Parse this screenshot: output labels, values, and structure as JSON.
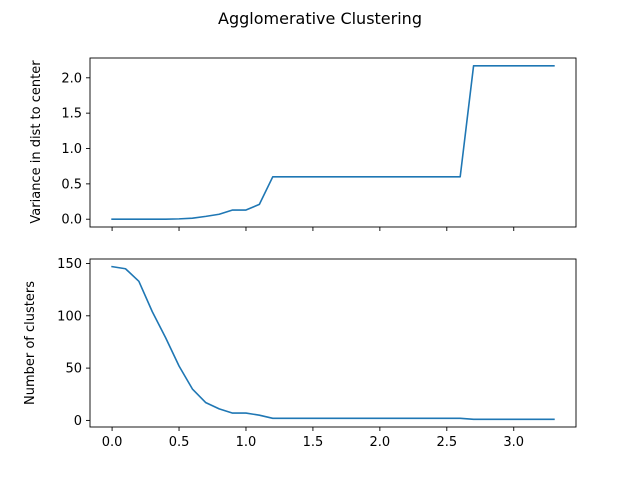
{
  "figure": {
    "title": "Agglomerative Clustering"
  },
  "chart_data": [
    {
      "type": "line",
      "ylabel": "Variance in dist to center",
      "xlabel": "",
      "xlim": [
        -0.165,
        3.465
      ],
      "ylim": [
        -0.11,
        2.28
      ],
      "x_ticks": [
        0.0,
        0.5,
        1.0,
        1.5,
        2.0,
        2.5,
        3.0
      ],
      "x_tick_labels_visible": false,
      "y_ticks": [
        0.0,
        0.5,
        1.0,
        1.5,
        2.0
      ],
      "y_tick_labels": [
        "0.0",
        "0.5",
        "1.0",
        "1.5",
        "2.0"
      ],
      "grid": false,
      "color": "#1f77b4",
      "series": [
        {
          "x": [
            0.0,
            0.1,
            0.2,
            0.3,
            0.4,
            0.5,
            0.6,
            0.7,
            0.8,
            0.9,
            1.0,
            1.1,
            1.2,
            1.3,
            1.4,
            1.5,
            1.6,
            1.7,
            1.8,
            1.9,
            2.0,
            2.1,
            2.2,
            2.3,
            2.4,
            2.5,
            2.6,
            2.7,
            2.8,
            2.9,
            3.0,
            3.1,
            3.2,
            3.3
          ],
          "y": [
            0.0,
            0.0,
            0.0,
            0.0,
            0.0,
            0.005,
            0.015,
            0.04,
            0.07,
            0.13,
            0.13,
            0.21,
            0.6,
            0.6,
            0.6,
            0.6,
            0.6,
            0.6,
            0.6,
            0.6,
            0.6,
            0.6,
            0.6,
            0.6,
            0.6,
            0.6,
            0.6,
            2.17,
            2.17,
            2.17,
            2.17,
            2.17,
            2.17,
            2.17
          ]
        }
      ]
    },
    {
      "type": "line",
      "ylabel": "Number of clusters",
      "xlabel": "",
      "xlim": [
        -0.165,
        3.465
      ],
      "ylim": [
        -6.3,
        154.3
      ],
      "x_ticks": [
        0.0,
        0.5,
        1.0,
        1.5,
        2.0,
        2.5,
        3.0
      ],
      "x_tick_labels": [
        "0.0",
        "0.5",
        "1.0",
        "1.5",
        "2.0",
        "2.5",
        "3.0"
      ],
      "y_ticks": [
        0,
        50,
        100,
        150
      ],
      "y_tick_labels": [
        "0",
        "50",
        "100",
        "150"
      ],
      "grid": false,
      "color": "#1f77b4",
      "series": [
        {
          "x": [
            0.0,
            0.1,
            0.2,
            0.3,
            0.4,
            0.5,
            0.6,
            0.7,
            0.8,
            0.9,
            1.0,
            1.1,
            1.2,
            1.3,
            1.4,
            1.5,
            1.6,
            1.7,
            1.8,
            1.9,
            2.0,
            2.1,
            2.2,
            2.3,
            2.4,
            2.5,
            2.6,
            2.7,
            2.8,
            2.9,
            3.0,
            3.1,
            3.2,
            3.3
          ],
          "y": [
            147,
            145,
            133,
            104,
            79,
            52,
            30,
            17,
            11,
            7,
            7,
            5,
            2,
            2,
            2,
            2,
            2,
            2,
            2,
            2,
            2,
            2,
            2,
            2,
            2,
            2,
            2,
            1,
            1,
            1,
            1,
            1,
            1,
            1
          ]
        }
      ]
    }
  ]
}
